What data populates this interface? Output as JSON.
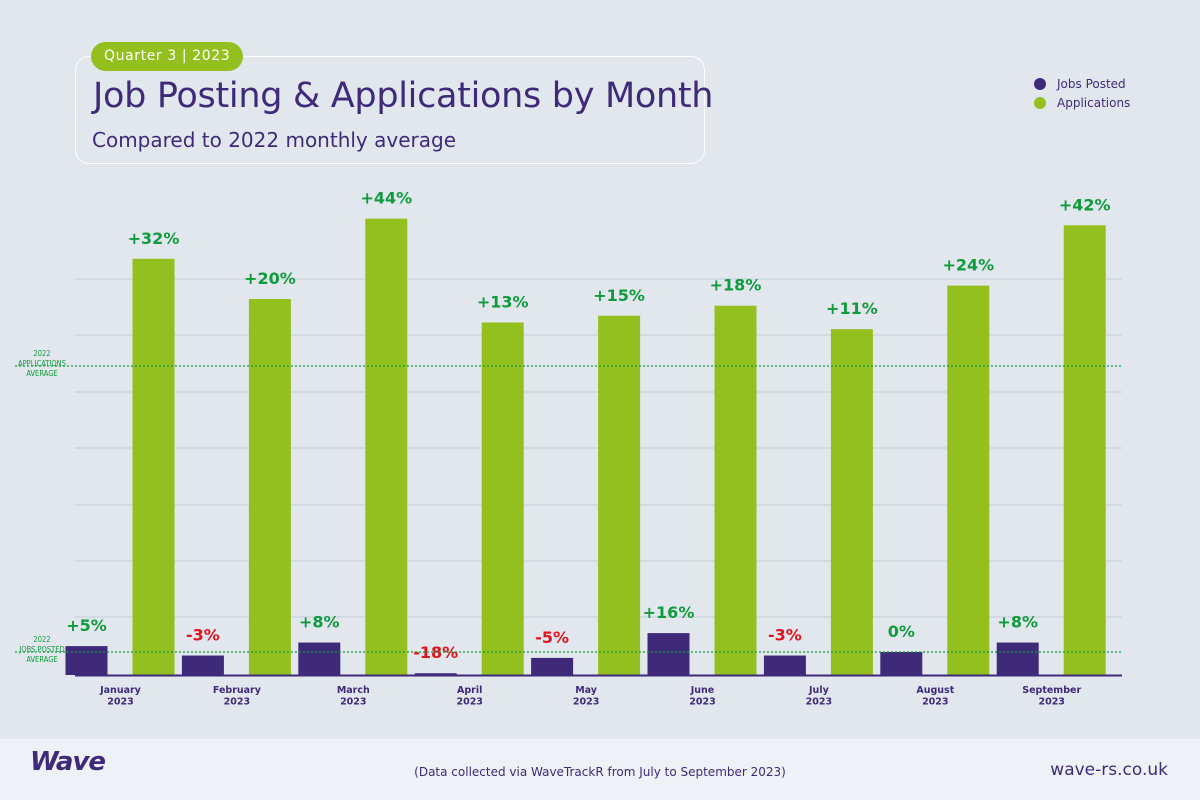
{
  "header": {
    "pill": "Quarter 3 | 2023",
    "title": "Job Posting & Applications by Month",
    "subtitle": "Compared to 2022 monthly average"
  },
  "colors": {
    "jobs": "#3f2a7a",
    "applications": "#93c01f",
    "positive": "#0f9a3c",
    "negative": "#e0141e",
    "reference_line": "#0f9a3c"
  },
  "chart_data": {
    "type": "bar",
    "categories": [
      "January 2023",
      "February 2023",
      "March 2023",
      "April 2023",
      "May 2023",
      "June 2023",
      "July 2023",
      "August 2023",
      "September 2023"
    ],
    "category_lines": [
      [
        "January",
        "2023"
      ],
      [
        "February",
        "2023"
      ],
      [
        "March",
        "2023"
      ],
      [
        "April",
        "2023"
      ],
      [
        "May",
        "2023"
      ],
      [
        "June",
        "2023"
      ],
      [
        "July",
        "2023"
      ],
      [
        "August",
        "2023"
      ],
      [
        "September",
        "2023"
      ]
    ],
    "unit": "% change vs 2022 monthly average",
    "series": [
      {
        "name": "Jobs Posted",
        "color": "#3f2a7a",
        "values": [
          5,
          -3,
          8,
          -18,
          -5,
          16,
          -3,
          0,
          8
        ],
        "labels": [
          "+5%",
          "-3%",
          "+8%",
          "-18%",
          "-5%",
          "+16%",
          "-3%",
          "0%",
          "+8%"
        ]
      },
      {
        "name": "Applications",
        "color": "#93c01f",
        "values": [
          32,
          20,
          44,
          13,
          15,
          18,
          11,
          24,
          42
        ],
        "labels": [
          "+32%",
          "+20%",
          "+44%",
          "+13%",
          "+15%",
          "+18%",
          "+11%",
          "+24%",
          "+42%"
        ]
      }
    ],
    "reference_lines": [
      {
        "series": "Jobs Posted",
        "lines": [
          "2022",
          "JOBS POSTED",
          "AVERAGE"
        ]
      },
      {
        "series": "Applications",
        "lines": [
          "2022",
          "APPLICATIONS",
          "AVERAGE"
        ]
      }
    ],
    "legend": {
      "position": "top-right",
      "items": [
        "Jobs Posted",
        "Applications"
      ]
    },
    "grid": true
  },
  "footer": {
    "logo": "Wave",
    "source": "(Data collected via WaveTrackR from July to September 2023)",
    "url": "wave-rs.co.uk"
  }
}
